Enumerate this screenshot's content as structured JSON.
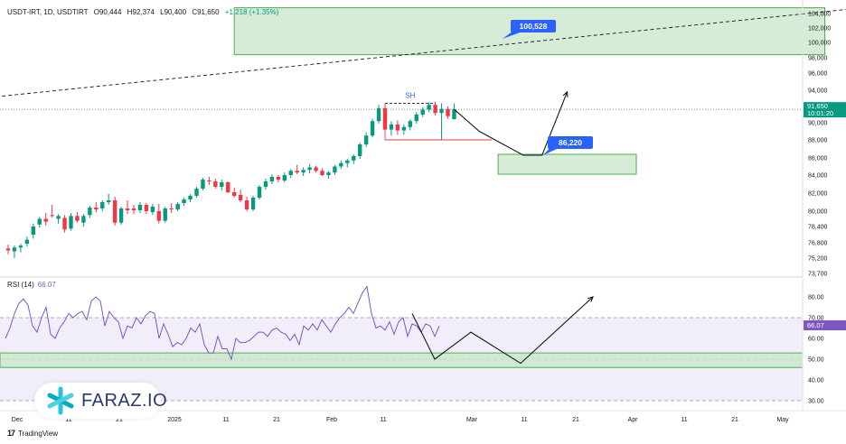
{
  "header": {
    "symbol": "USDT-IRT, 1D, USDTIRT",
    "open": "O90,444",
    "high": "H92,374",
    "low": "L90,400",
    "close": "C91,650",
    "change": "+1,218 (+1.35%)"
  },
  "rsi": {
    "label": "RSI (14)",
    "value": "66.07"
  },
  "brand": {
    "name": "FARAZ.IO"
  },
  "footer": {
    "tradingview": "TradingView"
  },
  "colors": {
    "bull": "#089981",
    "bear": "#f23645",
    "rsi": "#7e57c2",
    "zone_fill": "#c8e6c9",
    "zone_border": "#4caf50",
    "label_bg": "#2962ff",
    "price_badge": "#089981",
    "rsi_band": "#ede7f6"
  },
  "chart_data": [
    {
      "type": "candlestick",
      "title": "",
      "price_axis": {
        "ticks": [
          104000,
          102000,
          100000,
          98000,
          96000,
          94000,
          92000,
          90000,
          88000,
          86000,
          84000,
          82000,
          80000,
          78400,
          76800,
          75200,
          73700
        ],
        "tick_labels": [
          "104,000",
          "102,000",
          "100,000",
          "98,000",
          "96,000",
          "94,000",
          "92,000",
          "90,000",
          "88,000",
          "86,000",
          "84,000",
          "82,000",
          "80,000",
          "78,400",
          "76,800",
          "75,200",
          "73,700"
        ],
        "last_price": "91,650",
        "countdown": "10:01:20"
      },
      "time_axis": {
        "labels": [
          "Dec",
          "11",
          "21",
          "2025",
          "11",
          "21",
          "Feb",
          "11",
          "Mar",
          "11",
          "21",
          "Apr",
          "11",
          "21",
          "May"
        ]
      },
      "annotations": {
        "swing_high_label": "SH",
        "target_up_label": "100,528",
        "target_down_label": "86,220"
      },
      "candles": [
        [
          76200,
          76600,
          75600,
          76000
        ],
        [
          75900,
          76500,
          75200,
          76300
        ],
        [
          76300,
          76700,
          75800,
          76500
        ],
        [
          76700,
          77400,
          76400,
          77100
        ],
        [
          77600,
          78700,
          77200,
          78400
        ],
        [
          78600,
          79400,
          78300,
          79200
        ],
        [
          79200,
          79800,
          78500,
          78900
        ],
        [
          79600,
          80700,
          79300,
          79500
        ],
        [
          79200,
          79700,
          78700,
          79500
        ],
        [
          79300,
          79600,
          77800,
          78100
        ],
        [
          78200,
          79800,
          78000,
          79500
        ],
        [
          79500,
          79900,
          78800,
          79000
        ],
        [
          78800,
          79700,
          78400,
          79500
        ],
        [
          79600,
          80600,
          79300,
          80400
        ],
        [
          80400,
          81000,
          79900,
          80200
        ],
        [
          80300,
          81200,
          80000,
          81000
        ],
        [
          81000,
          81900,
          80700,
          81200
        ],
        [
          81200,
          81600,
          78500,
          78800
        ],
        [
          78800,
          80500,
          78600,
          80300
        ],
        [
          80300,
          81200,
          79700,
          80100
        ],
        [
          80300,
          80700,
          79700,
          80100
        ],
        [
          80100,
          81000,
          79800,
          80700
        ],
        [
          80700,
          80900,
          79700,
          80000
        ],
        [
          79900,
          80800,
          79600,
          80500
        ],
        [
          80000,
          80800,
          78700,
          79000
        ],
        [
          79000,
          80500,
          78800,
          80300
        ],
        [
          80300,
          80900,
          79800,
          80200
        ],
        [
          80200,
          81000,
          80000,
          80800
        ],
        [
          80900,
          81500,
          80600,
          81300
        ],
        [
          81300,
          81900,
          81000,
          81700
        ],
        [
          81700,
          82700,
          81500,
          82500
        ],
        [
          82500,
          83700,
          82300,
          83500
        ],
        [
          83400,
          83800,
          82900,
          83300
        ],
        [
          83300,
          83600,
          82500,
          82700
        ],
        [
          82700,
          83500,
          82300,
          83200
        ],
        [
          83200,
          83300,
          82000,
          82100
        ],
        [
          82100,
          82600,
          81500,
          81700
        ],
        [
          81800,
          82400,
          81000,
          81200
        ],
        [
          81200,
          81600,
          80000,
          80200
        ],
        [
          80200,
          81700,
          80000,
          81500
        ],
        [
          81500,
          82900,
          81300,
          82700
        ],
        [
          82700,
          83600,
          82400,
          83300
        ],
        [
          83300,
          84100,
          83000,
          83800
        ],
        [
          83800,
          84000,
          83200,
          83500
        ],
        [
          83400,
          84300,
          83200,
          84000
        ],
        [
          84000,
          84700,
          83700,
          84500
        ],
        [
          84500,
          85200,
          84100,
          84300
        ],
        [
          84300,
          84900,
          83900,
          84600
        ],
        [
          84600,
          85300,
          84200,
          84900
        ],
        [
          84900,
          85100,
          84300,
          84500
        ],
        [
          84500,
          84800,
          83900,
          84000
        ],
        [
          84000,
          84500,
          83600,
          84300
        ],
        [
          84300,
          85200,
          84000,
          85000
        ],
        [
          85000,
          85700,
          84700,
          85400
        ],
        [
          85400,
          85900,
          84900,
          85700
        ],
        [
          85700,
          86400,
          85300,
          86200
        ],
        [
          86200,
          87700,
          85900,
          87500
        ],
        [
          87500,
          88900,
          87200,
          88500
        ],
        [
          88500,
          90500,
          88300,
          90200
        ],
        [
          90200,
          92200,
          89900,
          91800
        ],
        [
          91800,
          92400,
          88900,
          89200
        ],
        [
          89200,
          90200,
          88500,
          89800
        ],
        [
          89800,
          90300,
          88600,
          89100
        ],
        [
          89100,
          89800,
          88600,
          89500
        ],
        [
          89500,
          90400,
          89100,
          90200
        ],
        [
          90200,
          91300,
          89900,
          91000
        ],
        [
          91000,
          91900,
          90700,
          91600
        ],
        [
          91600,
          92500,
          91300,
          92200
        ],
        [
          92200,
          92600,
          90900,
          91200
        ],
        [
          91200,
          92400,
          88000,
          91700
        ],
        [
          91700,
          92000,
          90500,
          90800
        ],
        [
          90444,
          92374,
          90400,
          91650
        ]
      ],
      "zones": [
        {
          "name": "upper-target-zone",
          "from_index": 36,
          "to_index": 130,
          "top": 104800,
          "bottom": 98400
        },
        {
          "name": "lower-target-zone",
          "from_index": 78,
          "to_index": 100,
          "top": 86400,
          "bottom": 84100
        }
      ],
      "swing_high_level": 92400,
      "swing_low_level": 88000,
      "trend_line": [
        {
          "index": -12,
          "price": 92400
        },
        {
          "index": 135,
          "price": 104700
        }
      ],
      "projection_path": [
        {
          "index": 71,
          "price": 91650
        },
        {
          "index": 75,
          "price": 89000
        },
        {
          "index": 82,
          "price": 86300
        },
        {
          "index": 85,
          "price": 86300
        },
        {
          "index": 89,
          "price": 93800
        }
      ]
    },
    {
      "type": "line",
      "title": "",
      "name": "RSI (14)",
      "ylim": [
        25,
        85
      ],
      "ticks": [
        80,
        70,
        60,
        50,
        40,
        30
      ],
      "tick_labels": [
        "80.00",
        "70.00",
        "60.00",
        "50.00",
        "40.00",
        "30.00"
      ],
      "overbought": 70,
      "middle": 50,
      "oversold": 30,
      "values": [
        60,
        65,
        72,
        77,
        79,
        76,
        66,
        63,
        70,
        75,
        62,
        60,
        65,
        68,
        72,
        70,
        72,
        73,
        69,
        78,
        80,
        78,
        66,
        73,
        70,
        68,
        60,
        66,
        65,
        70,
        67,
        71,
        73,
        72,
        60,
        67,
        62,
        56,
        58,
        57,
        60,
        65,
        63,
        67,
        57,
        53,
        53,
        61,
        55,
        55,
        50,
        60,
        58,
        58,
        59,
        61,
        63,
        63,
        61,
        64,
        65,
        63,
        62,
        59,
        62,
        57,
        66,
        64,
        67,
        64,
        69,
        66,
        63,
        67,
        70,
        72,
        75,
        72,
        77,
        82,
        85,
        72,
        65,
        66,
        64,
        68,
        62,
        68,
        70,
        61,
        67,
        66,
        63,
        67,
        66,
        61,
        66
      ],
      "current_value": "66.07",
      "green_band": [
        46,
        53
      ],
      "projection_path": [
        {
          "index": 60,
          "price": 72
        },
        {
          "index": 65,
          "price": 50
        },
        {
          "index": 73,
          "price": 63
        },
        {
          "index": 84,
          "price": 48
        },
        {
          "index": 100,
          "price": 80
        }
      ]
    }
  ]
}
